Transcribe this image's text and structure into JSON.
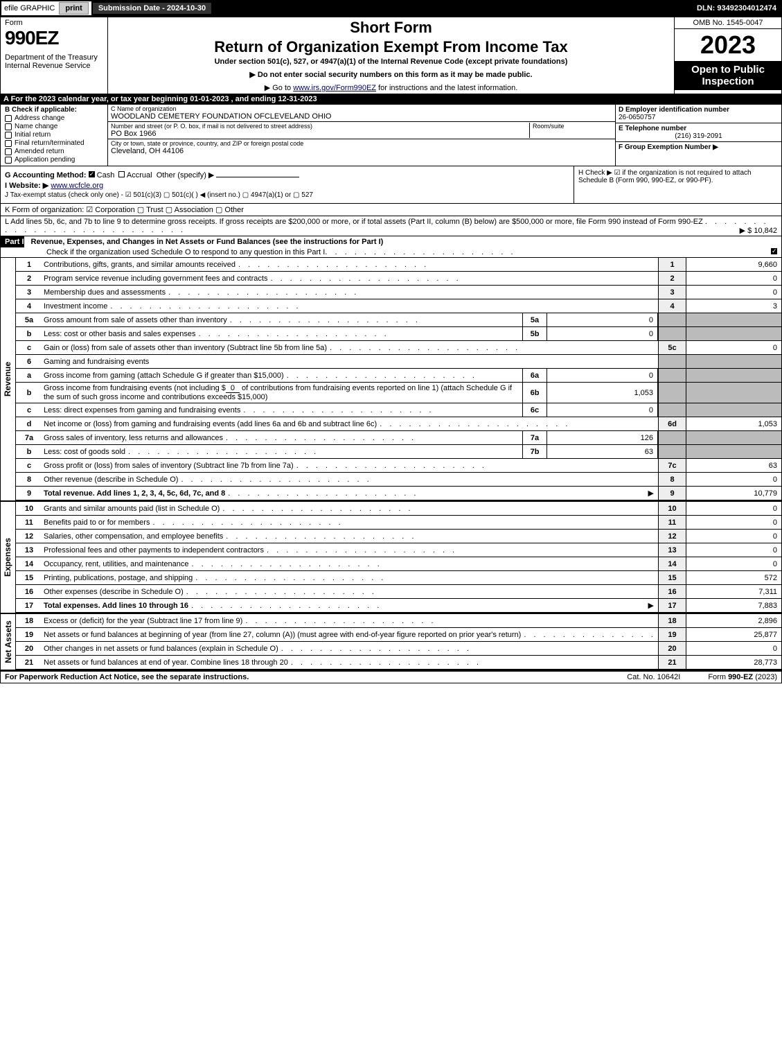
{
  "topbar": {
    "efile": "efile GRAPHIC",
    "print": "print",
    "submission": "Submission Date - 2024-10-30",
    "dln": "DLN: 93492304012474"
  },
  "header": {
    "form": "Form",
    "formno": "990EZ",
    "dept": "Department of the Treasury",
    "irs": "Internal Revenue Service",
    "shortform": "Short Form",
    "title": "Return of Organization Exempt From Income Tax",
    "subtitle": "Under section 501(c), 527, or 4947(a)(1) of the Internal Revenue Code (except private foundations)",
    "instr1": "▶ Do not enter social security numbers on this form as it may be made public.",
    "instr2_pre": "▶ Go to ",
    "instr2_link": "www.irs.gov/Form990EZ",
    "instr2_post": " for instructions and the latest information.",
    "omb": "OMB No. 1545-0047",
    "year": "2023",
    "open": "Open to Public Inspection"
  },
  "rowA": "A  For the 2023 calendar year, or tax year beginning 01-01-2023 , and ending 12-31-2023",
  "B": {
    "heading": "B  Check if applicable:",
    "opts": [
      "Address change",
      "Name change",
      "Initial return",
      "Final return/terminated",
      "Amended return",
      "Application pending"
    ]
  },
  "C": {
    "name_lbl": "C Name of organization",
    "name": "WOODLAND CEMETERY FOUNDATION OFCLEVELAND OHIO",
    "addr_lbl": "Number and street (or P. O. box, if mail is not delivered to street address)",
    "room_lbl": "Room/suite",
    "addr": "PO Box 1966",
    "city_lbl": "City or town, state or province, country, and ZIP or foreign postal code",
    "city": "Cleveland, OH  44106"
  },
  "D": {
    "ein_lbl": "D Employer identification number",
    "ein": "26-0650757",
    "tel_lbl": "E Telephone number",
    "tel": "(216) 319-2091",
    "grp_lbl": "F Group Exemption Number  ▶"
  },
  "G": {
    "label": "G Accounting Method:",
    "cash": "Cash",
    "accrual": "Accrual",
    "other": "Other (specify) ▶"
  },
  "H": "H  Check ▶  ☑ if the organization is not required to attach Schedule B (Form 990, 990-EZ, or 990-PF).",
  "I": {
    "label": "I Website: ▶",
    "val": "www.wcfcle.org"
  },
  "J": "J Tax-exempt status (check only one) - ☑ 501(c)(3)  ▢ 501(c)(   ) ◀ (insert no.)  ▢ 4947(a)(1) or  ▢ 527",
  "K": "K Form of organization:   ☑ Corporation   ▢ Trust   ▢ Association   ▢ Other",
  "L": {
    "text": "L Add lines 5b, 6c, and 7b to line 9 to determine gross receipts. If gross receipts are $200,000 or more, or if total assets (Part II, column (B) below) are $500,000 or more, file Form 990 instead of Form 990-EZ",
    "amt": "▶ $ 10,842"
  },
  "partI": {
    "label": "Part I",
    "title": "Revenue, Expenses, and Changes in Net Assets or Fund Balances (see the instructions for Part I)",
    "check": "Check if the organization used Schedule O to respond to any question in this Part I"
  },
  "vsides": {
    "rev": "Revenue",
    "exp": "Expenses",
    "na": "Net Assets"
  },
  "lines": {
    "l1": {
      "n": "1",
      "d": "Contributions, gifts, grants, and similar amounts received",
      "r": "1",
      "v": "9,660"
    },
    "l2": {
      "n": "2",
      "d": "Program service revenue including government fees and contracts",
      "r": "2",
      "v": "0"
    },
    "l3": {
      "n": "3",
      "d": "Membership dues and assessments",
      "r": "3",
      "v": "0"
    },
    "l4": {
      "n": "4",
      "d": "Investment income",
      "r": "4",
      "v": "3"
    },
    "l5a": {
      "n": "5a",
      "d": "Gross amount from sale of assets other than inventory",
      "m": "5a",
      "mv": "0"
    },
    "l5b": {
      "n": "b",
      "d": "Less: cost or other basis and sales expenses",
      "m": "5b",
      "mv": "0"
    },
    "l5c": {
      "n": "c",
      "d": "Gain or (loss) from sale of assets other than inventory (Subtract line 5b from line 5a)",
      "r": "5c",
      "v": "0"
    },
    "l6": {
      "n": "6",
      "d": "Gaming and fundraising events"
    },
    "l6a": {
      "n": "a",
      "d": "Gross income from gaming (attach Schedule G if greater than $15,000)",
      "m": "6a",
      "mv": "0"
    },
    "l6b": {
      "n": "b",
      "d1": "Gross income from fundraising events (not including $",
      "und": "0",
      "d2": "of contributions from fundraising events reported on line 1) (attach Schedule G if the sum of such gross income and contributions exceeds $15,000)",
      "m": "6b",
      "mv": "1,053"
    },
    "l6c": {
      "n": "c",
      "d": "Less: direct expenses from gaming and fundraising events",
      "m": "6c",
      "mv": "0"
    },
    "l6d": {
      "n": "d",
      "d": "Net income or (loss) from gaming and fundraising events (add lines 6a and 6b and subtract line 6c)",
      "r": "6d",
      "v": "1,053"
    },
    "l7a": {
      "n": "7a",
      "d": "Gross sales of inventory, less returns and allowances",
      "m": "7a",
      "mv": "126"
    },
    "l7b": {
      "n": "b",
      "d": "Less: cost of goods sold",
      "m": "7b",
      "mv": "63"
    },
    "l7c": {
      "n": "c",
      "d": "Gross profit or (loss) from sales of inventory (Subtract line 7b from line 7a)",
      "r": "7c",
      "v": "63"
    },
    "l8": {
      "n": "8",
      "d": "Other revenue (describe in Schedule O)",
      "r": "8",
      "v": "0"
    },
    "l9": {
      "n": "9",
      "d": "Total revenue. Add lines 1, 2, 3, 4, 5c, 6d, 7c, and 8",
      "r": "9",
      "v": "10,779",
      "bold": true,
      "arrow": true
    },
    "l10": {
      "n": "10",
      "d": "Grants and similar amounts paid (list in Schedule O)",
      "r": "10",
      "v": "0"
    },
    "l11": {
      "n": "11",
      "d": "Benefits paid to or for members",
      "r": "11",
      "v": "0"
    },
    "l12": {
      "n": "12",
      "d": "Salaries, other compensation, and employee benefits",
      "r": "12",
      "v": "0"
    },
    "l13": {
      "n": "13",
      "d": "Professional fees and other payments to independent contractors",
      "r": "13",
      "v": "0"
    },
    "l14": {
      "n": "14",
      "d": "Occupancy, rent, utilities, and maintenance",
      "r": "14",
      "v": "0"
    },
    "l15": {
      "n": "15",
      "d": "Printing, publications, postage, and shipping",
      "r": "15",
      "v": "572"
    },
    "l16": {
      "n": "16",
      "d": "Other expenses (describe in Schedule O)",
      "r": "16",
      "v": "7,311"
    },
    "l17": {
      "n": "17",
      "d": "Total expenses. Add lines 10 through 16",
      "r": "17",
      "v": "7,883",
      "bold": true,
      "arrow": true
    },
    "l18": {
      "n": "18",
      "d": "Excess or (deficit) for the year (Subtract line 17 from line 9)",
      "r": "18",
      "v": "2,896"
    },
    "l19": {
      "n": "19",
      "d": "Net assets or fund balances at beginning of year (from line 27, column (A)) (must agree with end-of-year figure reported on prior year's return)",
      "r": "19",
      "v": "25,877"
    },
    "l20": {
      "n": "20",
      "d": "Other changes in net assets or fund balances (explain in Schedule O)",
      "r": "20",
      "v": "0"
    },
    "l21": {
      "n": "21",
      "d": "Net assets or fund balances at end of year. Combine lines 18 through 20",
      "r": "21",
      "v": "28,773"
    }
  },
  "footer": {
    "left": "For Paperwork Reduction Act Notice, see the separate instructions.",
    "mid": "Cat. No. 10642I",
    "right_pre": "Form ",
    "right_b": "990-EZ",
    "right_post": " (2023)"
  },
  "colors": {
    "black": "#000000",
    "grey": "#bbbbbb",
    "lightgrey": "#eeeeee"
  }
}
